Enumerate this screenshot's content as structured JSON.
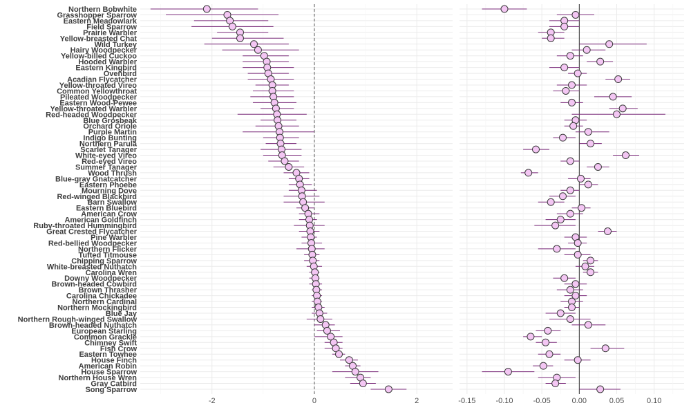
{
  "chart_data": {
    "type": "scatter",
    "categories": [
      "Northern Bobwhite",
      "Grasshopper Sparrow",
      "Eastern Meadowlark",
      "Field Sparrow",
      "Prairie Warbler",
      "Yellow-breasted Chat",
      "Wild Turkey",
      "Hairy Woodpecker",
      "Yellow-billed Cuckoo",
      "Hooded Warbler",
      "Eastern Kingbird",
      "Ovenbird",
      "Acadian Flycatcher",
      "Yellow-throated Vireo",
      "Common Yellowthroat",
      "Pileated Woodpecker",
      "Eastern Wood-Pewee",
      "Yellow-throated Warbler",
      "Red-headed Woodpecker",
      "Blue Grosbeak",
      "Orchard Oriole",
      "Purple Martin",
      "Indigo Bunting",
      "Northern Parula",
      "Scarlet Tanager",
      "White-eyed Vireo",
      "Red-eyed Vireo",
      "Summer Tanager",
      "Wood Thrush",
      "Blue-gray Gnatcatcher",
      "Eastern Phoebe",
      "Mourning Dove",
      "Red-winged Blackbird",
      "Barn Swallow",
      "Eastern Bluebird",
      "American Crow",
      "American Goldfinch",
      "Ruby-throated Hummingbird",
      "Great Crested Flycatcher",
      "Pine Warbler",
      "Red-bellied Woodpecker",
      "Northern Flicker",
      "Tufted Titmouse",
      "Chipping Sparrow",
      "White-breasted Nuthatch",
      "Carolina Wren",
      "Downy Woodpecker",
      "Brown-headed Cowbird",
      "Brown Thrasher",
      "Carolina Chickadee",
      "Northern Cardinal",
      "Northern Mockingbird",
      "Blue Jay",
      "Northern Rough-winged Swallow",
      "Brown-headed Nuthatch",
      "European Starling",
      "Common Grackle",
      "Chimney Swift",
      "Fish Crow",
      "Eastern Towhee",
      "House Finch",
      "American Robin",
      "House Sparrow",
      "Northern House Wren",
      "Gray Catbird",
      "Song Sparrow"
    ],
    "panels": [
      {
        "xlim": [
          -3.4,
          2.7
        ],
        "xticks": [
          -2,
          0,
          2
        ],
        "reference_line": 0,
        "reference_style": "dashed",
        "series": [
          {
            "estimate": [
              -2.1,
              -1.7,
              -1.65,
              -1.6,
              -1.45,
              -1.45,
              -1.18,
              -1.1,
              -0.98,
              -0.93,
              -0.92,
              -0.9,
              -0.85,
              -0.82,
              -0.82,
              -0.8,
              -0.78,
              -0.75,
              -0.73,
              -0.72,
              -0.7,
              -0.68,
              -0.67,
              -0.66,
              -0.64,
              -0.63,
              -0.58,
              -0.5,
              -0.35,
              -0.3,
              -0.28,
              -0.25,
              -0.24,
              -0.22,
              -0.18,
              -0.12,
              -0.1,
              -0.09,
              -0.08,
              -0.07,
              -0.06,
              -0.05,
              -0.04,
              -0.03,
              -0.01,
              0.01,
              0.02,
              0.03,
              0.04,
              0.05,
              0.06,
              0.08,
              0.1,
              0.12,
              0.22,
              0.25,
              0.32,
              0.38,
              0.42,
              0.48,
              0.68,
              0.75,
              0.8,
              0.9,
              0.95,
              1.45
            ],
            "lower": [
              -3.2,
              -2.9,
              -2.35,
              -2.4,
              -1.9,
              -2.0,
              -2.15,
              -1.8,
              -1.4,
              -1.4,
              -1.4,
              -1.3,
              -1.3,
              -1.15,
              -1.2,
              -1.25,
              -1.2,
              -1.05,
              -1.5,
              -1.05,
              -1.15,
              -1.4,
              -1.0,
              -0.95,
              -1.05,
              -1.0,
              -0.9,
              -0.8,
              -0.6,
              -0.5,
              -0.5,
              -0.5,
              -0.6,
              -0.6,
              -0.35,
              -0.3,
              -0.3,
              -0.4,
              -0.3,
              -0.25,
              -0.25,
              -0.35,
              -0.2,
              -0.2,
              -0.15,
              -0.1,
              -0.1,
              -0.1,
              -0.05,
              -0.05,
              -0.05,
              -0.05,
              -0.05,
              -0.15,
              0.0,
              0.05,
              0.0,
              0.2,
              0.2,
              0.35,
              0.5,
              0.6,
              0.35,
              0.6,
              0.7,
              1.1
            ],
            "upper": [
              -1.1,
              -0.7,
              -0.9,
              -0.8,
              -0.9,
              -0.6,
              -0.5,
              -0.3,
              -0.5,
              -0.5,
              -0.4,
              -0.5,
              -0.4,
              -0.5,
              -0.4,
              -0.4,
              -0.35,
              -0.4,
              -0.15,
              -0.35,
              -0.3,
              0.0,
              -0.3,
              -0.35,
              -0.25,
              -0.25,
              -0.3,
              -0.2,
              -0.1,
              -0.1,
              -0.05,
              0.05,
              0.1,
              0.2,
              0.0,
              0.1,
              0.05,
              0.2,
              0.1,
              0.05,
              0.15,
              0.2,
              0.1,
              0.1,
              0.15,
              0.1,
              0.1,
              0.15,
              0.15,
              0.15,
              0.15,
              0.2,
              0.25,
              0.35,
              0.4,
              0.5,
              0.55,
              0.55,
              0.55,
              0.6,
              0.85,
              0.9,
              1.25,
              1.1,
              1.2,
              1.8
            ]
          }
        ]
      },
      {
        "xlim": [
          -0.16,
          0.14
        ],
        "xticks": [
          -0.15,
          -0.1,
          -0.05,
          0.0,
          0.05,
          0.1
        ],
        "xtick_labels": [
          "-0.15",
          "-0.10",
          "-0.05",
          "0.00",
          "0.05",
          "0.10"
        ],
        "reference_line": 0,
        "reference_style": "solid",
        "series": [
          {
            "estimate": [
              -0.1,
              -0.005,
              -0.02,
              -0.02,
              -0.038,
              -0.038,
              0.04,
              0.01,
              -0.012,
              0.028,
              -0.02,
              -0.002,
              0.052,
              -0.01,
              -0.018,
              0.045,
              -0.01,
              0.058,
              0.05,
              -0.005,
              -0.008,
              0.012,
              -0.022,
              0.015,
              -0.058,
              0.062,
              -0.012,
              0.025,
              -0.068,
              0.002,
              0.012,
              -0.012,
              -0.022,
              -0.038,
              0.003,
              -0.012,
              -0.025,
              -0.032,
              0.038,
              -0.005,
              -0.002,
              -0.03,
              -0.002,
              0.015,
              0.008,
              0.015,
              -0.02,
              -0.005,
              -0.012,
              -0.005,
              -0.01,
              -0.01,
              -0.025,
              -0.012,
              0.012,
              -0.042,
              -0.065,
              -0.045,
              0.035,
              -0.04,
              -0.002,
              -0.048,
              -0.095,
              -0.03,
              -0.032,
              0.028
            ],
            "lower": [
              -0.13,
              -0.03,
              -0.04,
              -0.04,
              -0.055,
              -0.05,
              0.0,
              -0.01,
              -0.03,
              0.01,
              -0.04,
              -0.015,
              0.035,
              -0.03,
              -0.035,
              0.02,
              -0.025,
              0.04,
              -0.01,
              -0.02,
              -0.02,
              -0.005,
              -0.035,
              0.0,
              -0.075,
              0.045,
              -0.025,
              0.01,
              -0.078,
              -0.015,
              0.0,
              -0.025,
              -0.04,
              -0.055,
              -0.01,
              -0.03,
              -0.045,
              -0.06,
              0.025,
              -0.02,
              -0.015,
              -0.055,
              -0.02,
              0.005,
              -0.005,
              0.005,
              -0.035,
              -0.02,
              -0.03,
              -0.02,
              -0.025,
              -0.02,
              -0.045,
              -0.04,
              -0.01,
              -0.058,
              -0.075,
              -0.058,
              0.015,
              -0.055,
              -0.02,
              -0.062,
              -0.13,
              -0.055,
              -0.045,
              0.0
            ],
            "upper": [
              -0.07,
              0.02,
              0.0,
              0.0,
              -0.02,
              -0.02,
              0.09,
              0.035,
              0.005,
              0.045,
              0.0,
              0.01,
              0.068,
              0.01,
              0.0,
              0.07,
              0.005,
              0.078,
              0.115,
              0.01,
              0.005,
              0.04,
              -0.005,
              0.03,
              -0.04,
              0.08,
              0.0,
              0.04,
              -0.055,
              0.015,
              0.025,
              0.0,
              -0.005,
              -0.02,
              0.015,
              0.005,
              -0.005,
              -0.005,
              0.05,
              0.01,
              0.01,
              -0.005,
              0.015,
              0.025,
              0.02,
              0.025,
              -0.005,
              0.01,
              0.005,
              0.01,
              0.005,
              0.0,
              -0.005,
              0.015,
              0.035,
              -0.025,
              -0.05,
              -0.03,
              0.06,
              -0.025,
              0.015,
              -0.035,
              -0.06,
              -0.005,
              -0.018,
              0.055
            ]
          }
        ]
      }
    ]
  }
}
